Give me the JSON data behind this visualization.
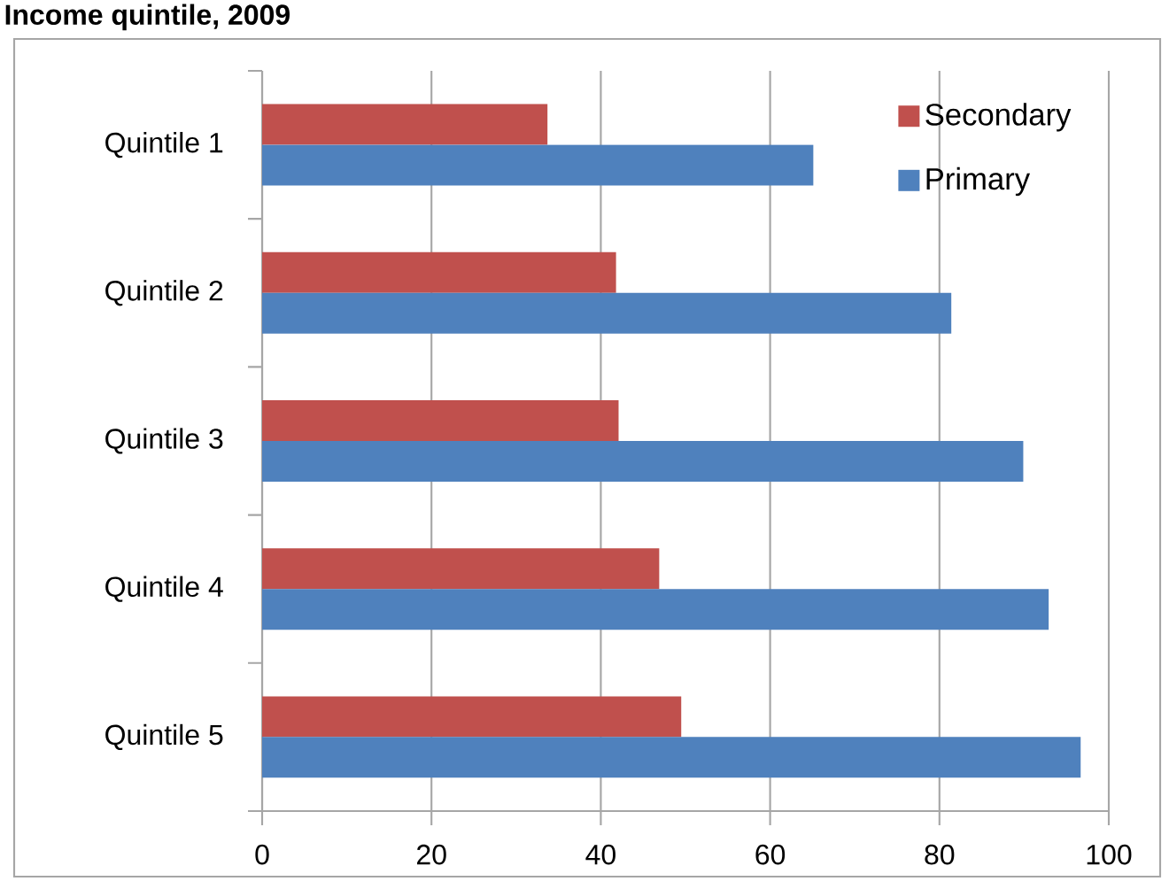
{
  "chart_data": {
    "type": "bar",
    "orientation": "horizontal",
    "title": "Income quintile, 2009",
    "categories": [
      "Quintile 1",
      "Quintile 2",
      "Quintile 3",
      "Quintile 4",
      "Quintile 5"
    ],
    "series": [
      {
        "name": "Secondary",
        "color": "#c0504d",
        "values": [
          33.7,
          41.8,
          42.1,
          46.9,
          49.5
        ]
      },
      {
        "name": "Primary",
        "color": "#4f81bd",
        "values": [
          65.1,
          81.4,
          89.9,
          92.9,
          96.7
        ]
      }
    ],
    "xlim": [
      0,
      100
    ],
    "xticks": [
      0,
      20,
      40,
      60,
      80,
      100
    ],
    "grid": "x",
    "legend": "top right"
  }
}
